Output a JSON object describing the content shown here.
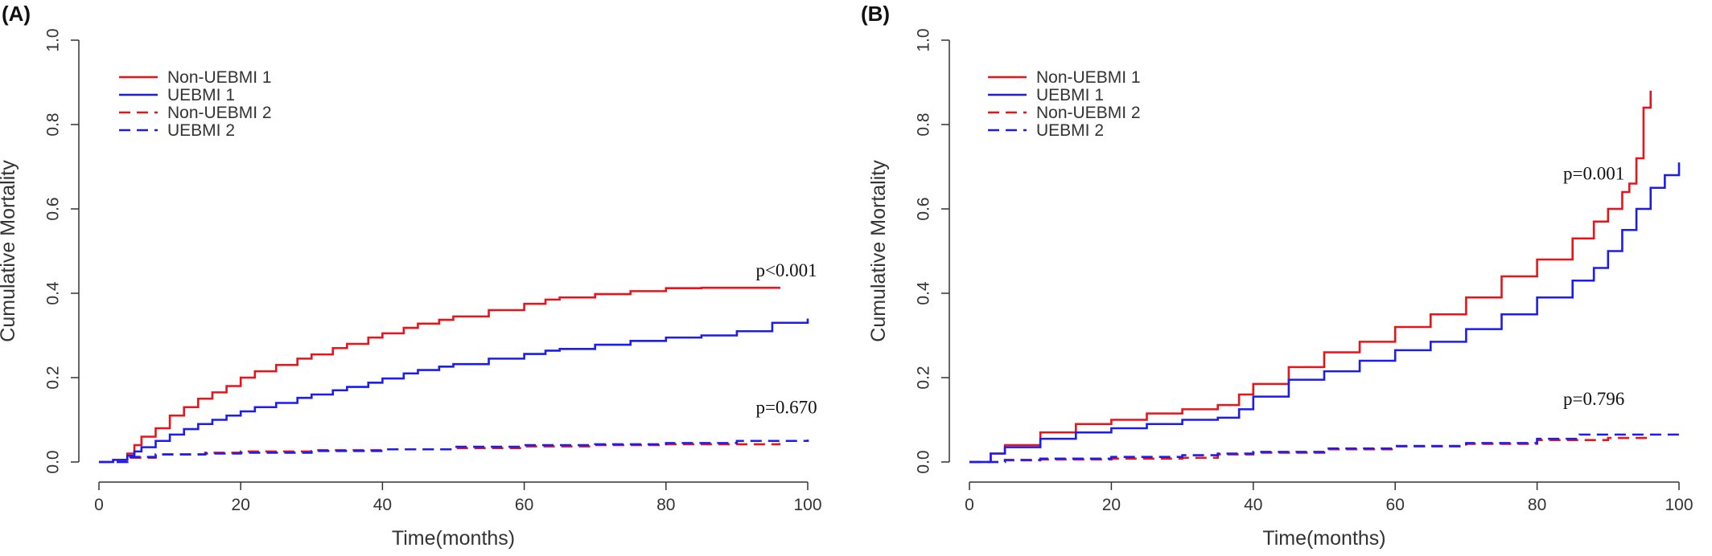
{
  "colors": {
    "group1": "#e8141a",
    "group2": "#1c1cf0",
    "axis": "#333333"
  },
  "legend_labels": [
    "Non-UEBMI 1",
    "UEBMI 1",
    "Non-UEBMI 2",
    "UEBMI 2"
  ],
  "chart_data": [
    {
      "panel": "(A)",
      "type": "line",
      "step": true,
      "xlabel": "Time(months)",
      "ylabel": "Cumulative Mortality",
      "xlim": [
        0,
        100
      ],
      "ylim": [
        0,
        1.0
      ],
      "xticks": [
        0,
        20,
        40,
        60,
        80,
        100
      ],
      "yticks": [
        "0.0",
        "0.2",
        "0.4",
        "0.6",
        "0.8",
        "1.0"
      ],
      "legend_position": "top-left",
      "series": [
        {
          "name": "Non-UEBMI 1",
          "color": "#e8141a",
          "dash": false,
          "x": [
            0,
            2,
            4,
            5,
            6,
            8,
            10,
            12,
            14,
            16,
            18,
            20,
            22,
            25,
            28,
            30,
            33,
            35,
            38,
            40,
            43,
            45,
            48,
            50,
            55,
            60,
            63,
            65,
            70,
            75,
            80,
            85,
            90,
            96
          ],
          "y": [
            0,
            0.005,
            0.02,
            0.04,
            0.06,
            0.08,
            0.11,
            0.13,
            0.15,
            0.165,
            0.18,
            0.2,
            0.215,
            0.23,
            0.245,
            0.255,
            0.27,
            0.28,
            0.295,
            0.305,
            0.318,
            0.328,
            0.337,
            0.345,
            0.36,
            0.375,
            0.385,
            0.39,
            0.398,
            0.405,
            0.412,
            0.413,
            0.413,
            0.415
          ]
        },
        {
          "name": "UEBMI 1",
          "color": "#1c1cf0",
          "dash": false,
          "x": [
            0,
            2,
            4,
            5,
            6,
            8,
            10,
            12,
            14,
            16,
            18,
            20,
            22,
            25,
            28,
            30,
            33,
            35,
            38,
            40,
            43,
            45,
            48,
            50,
            55,
            60,
            63,
            65,
            70,
            75,
            80,
            85,
            90,
            95,
            100
          ],
          "y": [
            0,
            0.005,
            0.015,
            0.025,
            0.035,
            0.05,
            0.065,
            0.078,
            0.09,
            0.1,
            0.11,
            0.12,
            0.13,
            0.14,
            0.152,
            0.16,
            0.17,
            0.178,
            0.188,
            0.198,
            0.21,
            0.218,
            0.226,
            0.232,
            0.245,
            0.256,
            0.264,
            0.268,
            0.278,
            0.287,
            0.295,
            0.3,
            0.31,
            0.33,
            0.34
          ]
        },
        {
          "name": "Non-UEBMI 2",
          "color": "#e8141a",
          "dash": true,
          "x": [
            0,
            4,
            8,
            15,
            20,
            30,
            40,
            50,
            60,
            70,
            80,
            96
          ],
          "y": [
            0,
            0.01,
            0.018,
            0.022,
            0.025,
            0.028,
            0.03,
            0.033,
            0.037,
            0.04,
            0.042,
            0.045
          ]
        },
        {
          "name": "UEBMI 2",
          "color": "#1c1cf0",
          "dash": true,
          "x": [
            0,
            4,
            8,
            15,
            20,
            30,
            40,
            50,
            60,
            70,
            80,
            90,
            100
          ],
          "y": [
            0,
            0.012,
            0.018,
            0.02,
            0.022,
            0.026,
            0.03,
            0.036,
            0.04,
            0.042,
            0.045,
            0.05,
            0.053
          ]
        }
      ],
      "annotations": [
        {
          "text": "p<0.001",
          "x": 97,
          "y": 0.44
        },
        {
          "text": "p=0.670",
          "x": 97,
          "y": 0.115
        }
      ]
    },
    {
      "panel": "(B)",
      "type": "line",
      "step": true,
      "xlabel": "Time(months)",
      "ylabel": "Cumulative Mortality",
      "xlim": [
        0,
        100
      ],
      "ylim": [
        0,
        1.0
      ],
      "xticks": [
        0,
        20,
        40,
        60,
        80,
        100
      ],
      "yticks": [
        "0.0",
        "0.2",
        "0.4",
        "0.6",
        "0.8",
        "1.0"
      ],
      "legend_position": "top-left",
      "series": [
        {
          "name": "Non-UEBMI 1",
          "color": "#e8141a",
          "dash": false,
          "x": [
            0,
            3,
            5,
            10,
            15,
            20,
            25,
            30,
            35,
            38,
            40,
            45,
            50,
            55,
            60,
            65,
            70,
            75,
            80,
            85,
            88,
            90,
            92,
            93,
            94,
            95,
            96
          ],
          "y": [
            0,
            0.02,
            0.04,
            0.07,
            0.09,
            0.1,
            0.115,
            0.125,
            0.135,
            0.16,
            0.185,
            0.225,
            0.26,
            0.285,
            0.32,
            0.35,
            0.39,
            0.44,
            0.48,
            0.53,
            0.57,
            0.6,
            0.64,
            0.66,
            0.72,
            0.84,
            0.88
          ]
        },
        {
          "name": "UEBMI 1",
          "color": "#1c1cf0",
          "dash": false,
          "x": [
            0,
            3,
            5,
            10,
            15,
            20,
            25,
            30,
            35,
            38,
            40,
            45,
            50,
            55,
            60,
            65,
            70,
            75,
            80,
            85,
            88,
            90,
            92,
            94,
            96,
            98,
            100
          ],
          "y": [
            0,
            0.02,
            0.035,
            0.055,
            0.07,
            0.08,
            0.09,
            0.1,
            0.105,
            0.125,
            0.155,
            0.195,
            0.215,
            0.24,
            0.265,
            0.285,
            0.315,
            0.35,
            0.39,
            0.43,
            0.46,
            0.5,
            0.55,
            0.6,
            0.65,
            0.68,
            0.71
          ]
        },
        {
          "name": "Non-UEBMI 2",
          "color": "#e8141a",
          "dash": true,
          "x": [
            0,
            5,
            10,
            20,
            30,
            35,
            40,
            50,
            60,
            70,
            80,
            90,
            96
          ],
          "y": [
            0,
            0.004,
            0.006,
            0.008,
            0.01,
            0.018,
            0.022,
            0.03,
            0.037,
            0.043,
            0.052,
            0.057,
            0.06
          ]
        },
        {
          "name": "UEBMI 2",
          "color": "#1c1cf0",
          "dash": true,
          "x": [
            0,
            5,
            10,
            20,
            30,
            35,
            40,
            50,
            60,
            70,
            80,
            86,
            90,
            100
          ],
          "y": [
            0,
            0.005,
            0.008,
            0.012,
            0.016,
            0.02,
            0.024,
            0.032,
            0.038,
            0.045,
            0.055,
            0.065,
            0.065,
            0.068
          ]
        }
      ],
      "annotations": [
        {
          "text": "p=0.001",
          "x": 88,
          "y": 0.67
        },
        {
          "text": "p=0.796",
          "x": 88,
          "y": 0.135
        }
      ]
    }
  ]
}
